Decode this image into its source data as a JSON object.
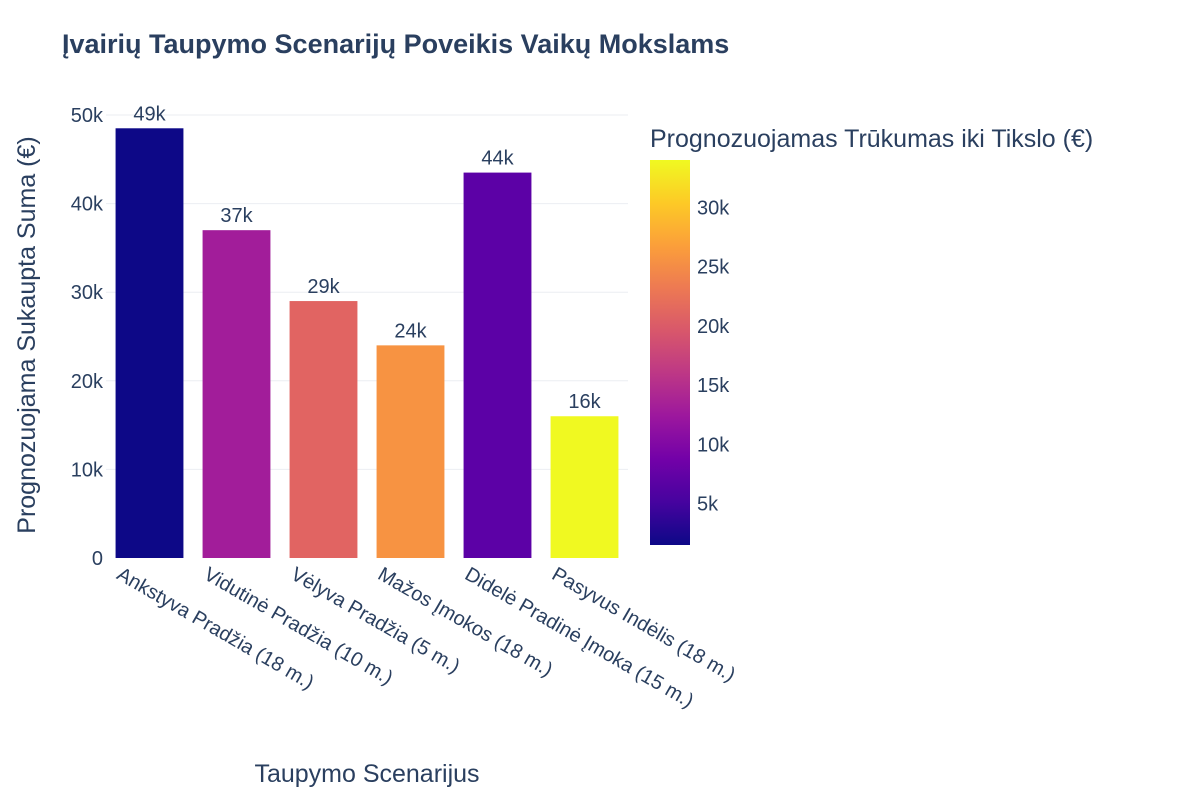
{
  "chart_data": {
    "type": "bar",
    "title": "Įvairių Taupymo Scenarijų Poveikis Vaikų Mokslams",
    "xlabel": "Taupymo Scenarijus",
    "ylabel": "Prognozuojama Sukaupta Suma (€)",
    "ylim": [
      0,
      50000
    ],
    "y_ticks": [
      0,
      10000,
      20000,
      30000,
      40000,
      50000
    ],
    "y_tick_labels": [
      "0",
      "10k",
      "20k",
      "30k",
      "40k",
      "50k"
    ],
    "grid": true,
    "categories": [
      "Ankstyva Pradžia (18 m.)",
      "Vidutinė Pradžia (10 m.)",
      "Vėlyva Pradžia (5 m.)",
      "Mažos Įmokos (18 m.)",
      "Didelė Pradinė Įmoka (15 m.)",
      "Pasyvus Indėlis (18 m.)"
    ],
    "values": [
      48500,
      37000,
      29000,
      24000,
      43500,
      16000
    ],
    "value_labels": [
      "49k",
      "37k",
      "29k",
      "24k",
      "44k",
      "16k"
    ],
    "bar_colors": [
      "#0d0887",
      "#a21d9a",
      "#e16462",
      "#f79342",
      "#5c01a6",
      "#f0f921"
    ],
    "colorbar": {
      "title": "Prognozuojamas Trūkumas iki Tikslo (€)",
      "range": [
        1500,
        34000
      ],
      "ticks": [
        5000,
        10000,
        15000,
        20000,
        25000,
        30000
      ],
      "tick_labels": [
        "5k",
        "10k",
        "15k",
        "20k",
        "25k",
        "30k"
      ],
      "colorscale": [
        "#0d0887",
        "#46039f",
        "#7201a8",
        "#9c179e",
        "#bd3786",
        "#d8576b",
        "#ed7953",
        "#fb9f3a",
        "#fdca26",
        "#f0f921"
      ]
    }
  }
}
